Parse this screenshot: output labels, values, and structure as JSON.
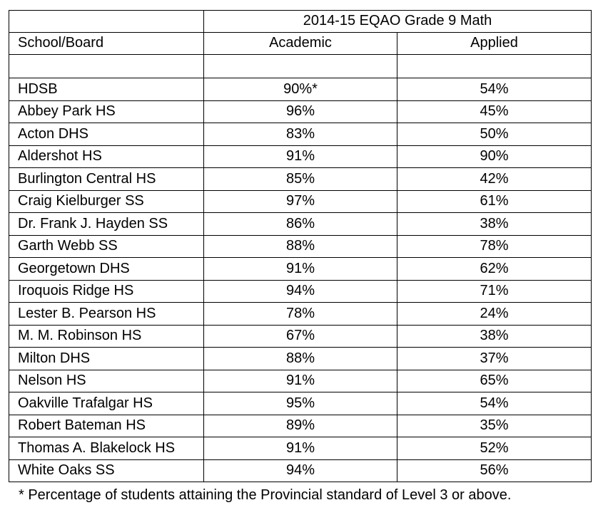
{
  "table": {
    "title": "2014-15 EQAO Grade 9 Math",
    "col_school": "School/Board",
    "col_academic": "Academic",
    "col_applied": "Applied",
    "rows": [
      {
        "school": "HDSB",
        "academic": "90%*",
        "applied": "54%"
      },
      {
        "school": "Abbey Park HS",
        "academic": "96%",
        "applied": "45%"
      },
      {
        "school": "Acton DHS",
        "academic": "83%",
        "applied": "50%"
      },
      {
        "school": "Aldershot HS",
        "academic": "91%",
        "applied": "90%"
      },
      {
        "school": "Burlington Central HS",
        "academic": "85%",
        "applied": "42%"
      },
      {
        "school": "Craig Kielburger SS",
        "academic": "97%",
        "applied": "61%"
      },
      {
        "school": "Dr. Frank J. Hayden SS",
        "academic": "86%",
        "applied": "38%"
      },
      {
        "school": "Garth Webb SS",
        "academic": "88%",
        "applied": "78%"
      },
      {
        "school": "Georgetown DHS",
        "academic": "91%",
        "applied": "62%"
      },
      {
        "school": "Iroquois Ridge HS",
        "academic": "94%",
        "applied": "71%"
      },
      {
        "school": "Lester B. Pearson HS",
        "academic": "78%",
        "applied": "24%"
      },
      {
        "school": "M. M. Robinson HS",
        "academic": "67%",
        "applied": "38%"
      },
      {
        "school": "Milton DHS",
        "academic": "88%",
        "applied": "37%"
      },
      {
        "school": "Nelson HS",
        "academic": "91%",
        "applied": "65%"
      },
      {
        "school": "Oakville Trafalgar HS",
        "academic": "95%",
        "applied": "54%"
      },
      {
        "school": "Robert Bateman HS",
        "academic": "89%",
        "applied": "35%"
      },
      {
        "school": "Thomas A. Blakelock HS",
        "academic": "91%",
        "applied": "52%"
      },
      {
        "school": "White Oaks SS",
        "academic": "94%",
        "applied": "56%"
      }
    ]
  },
  "footnote": "* Percentage of students attaining the Provincial standard of Level 3 or above."
}
